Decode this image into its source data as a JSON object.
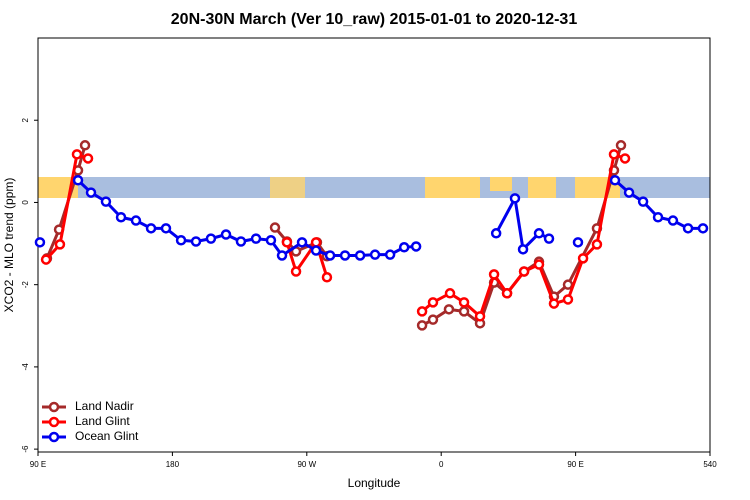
{
  "chart_data": {
    "type": "line",
    "title": "20N-30N March (Ver 10_raw)   2015-01-01 to 2020-12-31",
    "x_label": "Longitude",
    "y_label": "XCO2 - MLO trend (ppm)",
    "xlim": [
      90,
      540
    ],
    "xticks": [
      {
        "value": 90,
        "label": "90 E"
      },
      180,
      {
        "value": 270,
        "label": "90 W"
      },
      {
        "value": 360,
        "label": "0"
      },
      {
        "value": 450,
        "label": "90 E"
      },
      540
    ],
    "ylim": [
      -6.07,
      4.0
    ],
    "yticks": [
      2,
      0,
      -2,
      -4,
      -6
    ],
    "legend": "bottom-left",
    "series": [
      {
        "name": "Land Nadir",
        "color": "#a52a2a",
        "x": [
          96,
          104.1,
          116.8,
          121.5,
          null,
          248.7,
          256.7,
          262.8,
          276.8,
          283.5,
          null,
          347.2,
          354.5,
          365.2,
          375.3,
          386,
          395.4,
          404.1,
          415.5,
          425.5,
          435.5,
          444.9,
          464.3,
          475.7,
          480.4
        ],
        "values": [
          -1.36,
          -0.66,
          0.78,
          1.39,
          null,
          -0.61,
          -0.95,
          -1.19,
          -0.97,
          -1.31,
          null,
          -2.99,
          -2.85,
          -2.6,
          -2.65,
          -2.94,
          -1.95,
          -2.21,
          -1.68,
          -1.44,
          -2.29,
          -2.0,
          -0.63,
          0.78,
          1.39
        ]
      },
      {
        "name": "Land Glint",
        "color": "#ff0000",
        "x": [
          95.4,
          104.7,
          116.1,
          123.5,
          null,
          256.7,
          262.8,
          276.2,
          283.5,
          null,
          347.2,
          354.5,
          365.9,
          375.3,
          386,
          395.4,
          404.1,
          415.5,
          425.5,
          435.5,
          444.9,
          455,
          464.3,
          475.7,
          483.1
        ],
        "values": [
          -1.39,
          -1.02,
          1.17,
          1.07,
          null,
          -0.97,
          -1.68,
          -0.97,
          -1.82,
          null,
          -2.65,
          -2.43,
          -2.21,
          -2.43,
          -2.77,
          -1.75,
          -2.21,
          -1.68,
          -1.51,
          -2.46,
          -2.36,
          -1.36,
          -1.02,
          1.17,
          1.07
        ]
      },
      {
        "name": "Ocean Glint",
        "color": "#0000ee",
        "x": [
          91.3,
          null,
          116.8,
          125.5,
          135.5,
          145.6,
          155.6,
          165.7,
          175.7,
          185.8,
          195.8,
          205.8,
          215.9,
          225.9,
          236,
          246,
          253.4,
          266.8,
          276.2,
          285.6,
          295.6,
          305.7,
          315.7,
          325.8,
          335.2,
          343.2,
          null,
          396.8,
          409.4,
          414.8,
          425.5,
          432.2,
          null,
          451.6,
          null,
          476.4,
          485.8,
          495.2,
          505.2,
          515.2,
          525.3,
          535.3
        ],
        "values": [
          -0.97,
          null,
          0.54,
          0.24,
          0.02,
          -0.36,
          -0.44,
          -0.63,
          -0.63,
          -0.92,
          -0.95,
          -0.88,
          -0.78,
          -0.95,
          -0.88,
          -0.92,
          -1.29,
          -0.97,
          -1.17,
          -1.29,
          -1.29,
          -1.29,
          -1.27,
          -1.27,
          -1.09,
          -1.07,
          null,
          -0.75,
          0.1,
          -1.14,
          -0.75,
          -0.88,
          null,
          -0.97,
          null,
          0.54,
          0.24,
          0.02,
          -0.36,
          -0.44,
          -0.63,
          -0.63
        ]
      }
    ]
  }
}
